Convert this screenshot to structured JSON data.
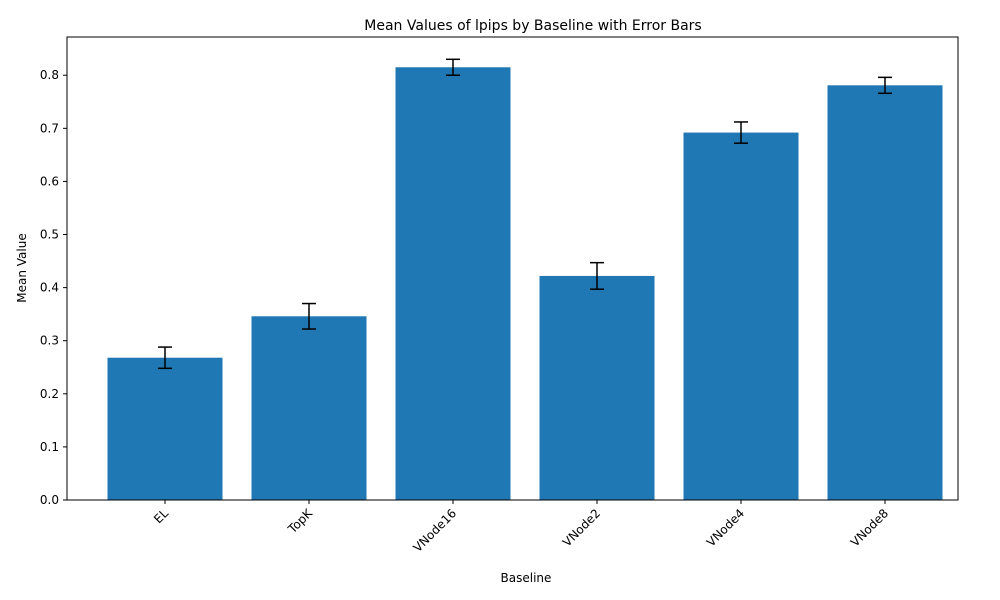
{
  "chart_data": {
    "type": "bar",
    "title": "Mean Values of lpips by Baseline with Error Bars",
    "xlabel": "Baseline",
    "ylabel": "Mean Value",
    "categories": [
      "EL",
      "TopK",
      "VNode16",
      "VNode2",
      "VNode4",
      "VNode8"
    ],
    "values": [
      0.268,
      0.346,
      0.815,
      0.422,
      0.692,
      0.781
    ],
    "errors": [
      0.02,
      0.024,
      0.015,
      0.025,
      0.02,
      0.015
    ],
    "ylim": [
      0,
      0.872
    ],
    "yticks": [
      0.0,
      0.1,
      0.2,
      0.3,
      0.4,
      0.5,
      0.6,
      0.7,
      0.8
    ],
    "ytick_labels": [
      "0.0",
      "0.1",
      "0.2",
      "0.3",
      "0.4",
      "0.5",
      "0.6",
      "0.7",
      "0.8"
    ],
    "bar_color": "#1f77b4",
    "error_color": "#000000",
    "grid": false,
    "xtick_rotation_deg": 45
  }
}
